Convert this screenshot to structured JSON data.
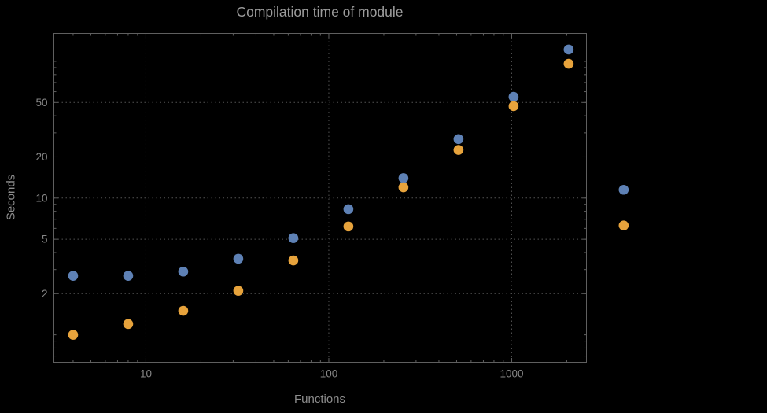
{
  "colors": {
    "background": "#000000",
    "frame": "#5f5f5f",
    "grid": "#525252",
    "title-text": "#9c9c9c",
    "axis-text": "#8d8d8d",
    "tick-text": "#868686"
  },
  "chart_data": {
    "type": "scatter",
    "title": "Compilation time of module",
    "xlabel": "Functions",
    "ylabel": "Seconds",
    "x_scale": "log",
    "y_scale": "log",
    "xlim": [
      3.14,
      2563
    ],
    "ylim": [
      0.63,
      160
    ],
    "x_ticks": [
      10,
      100,
      1000
    ],
    "y_ticks": [
      2,
      5,
      10,
      20,
      50
    ],
    "grid": "dotted",
    "legend": "none",
    "x": [
      4,
      8,
      16,
      32,
      64,
      128,
      256,
      512,
      1024,
      2048,
      4096
    ],
    "series": [
      {
        "name": "blue",
        "color": "#5E81B5",
        "values": [
          2.7,
          2.7,
          2.9,
          3.6,
          5.1,
          8.3,
          14,
          27,
          55,
          122,
          11.5
        ]
      },
      {
        "name": "orange",
        "color": "#E7A33C",
        "values": [
          1.0,
          1.2,
          1.5,
          2.1,
          3.5,
          6.2,
          12,
          22.5,
          47,
          96,
          6.3
        ]
      }
    ]
  }
}
